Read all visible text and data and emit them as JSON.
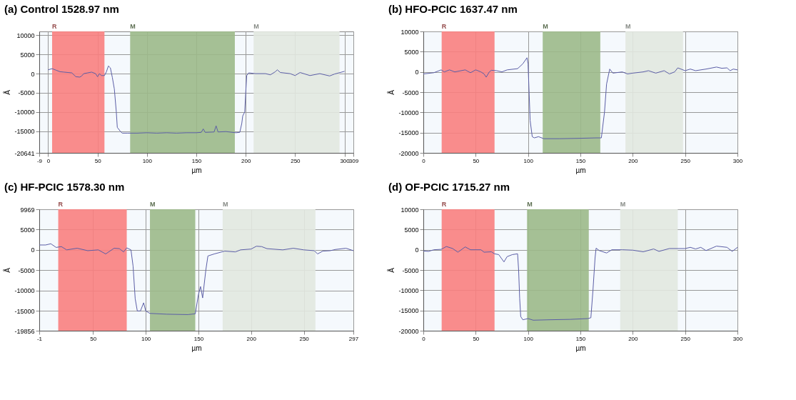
{
  "chart_data": [
    {
      "type": "line",
      "title": "(a) Control 1528.97 nm",
      "xlabel": "µm",
      "ylabel": "Å",
      "xlim": [
        -9,
        309
      ],
      "xticks": [
        -9,
        0,
        50,
        100,
        150,
        200,
        250,
        300,
        309
      ],
      "ylim": [
        -20641,
        11000
      ],
      "yticks": [
        -20641,
        -15000,
        -10000,
        -5000,
        0,
        5000,
        10000
      ],
      "grid": true,
      "bands": [
        {
          "axis": "x",
          "from": 4,
          "to": 57,
          "label": "R",
          "color": "#f98080"
        },
        {
          "axis": "x",
          "from": 83,
          "to": 189,
          "label": "M",
          "color": "#9cb98a"
        },
        {
          "axis": "x",
          "from": 208,
          "to": 295,
          "label": "M",
          "color": "#e2e8e0"
        }
      ],
      "series": [
        {
          "color": "#5b5ea6",
          "x": [
            0,
            4,
            8,
            12,
            16,
            20,
            24,
            28,
            32,
            34,
            36,
            40,
            44,
            48,
            50,
            52,
            54,
            57,
            59,
            61,
            63,
            65,
            67,
            69,
            70,
            73,
            75,
            80,
            90,
            100,
            110,
            120,
            130,
            140,
            150,
            155,
            157,
            159,
            168,
            170,
            172,
            180,
            190,
            194,
            196,
            197,
            199,
            200,
            201,
            203,
            210,
            220,
            225,
            230,
            232,
            235,
            245,
            250,
            255,
            265,
            275,
            285,
            290,
            300
          ],
          "values": [
            1000,
            1300,
            900,
            500,
            400,
            300,
            200,
            -800,
            -900,
            -600,
            0,
            200,
            400,
            0,
            -800,
            0,
            -500,
            -500,
            500,
            2000,
            1500,
            -1000,
            -4000,
            -10000,
            -14000,
            -15000,
            -15500,
            -15500,
            -15500,
            -15400,
            -15500,
            -15400,
            -15500,
            -15400,
            -15400,
            -15300,
            -14400,
            -15300,
            -15200,
            -13600,
            -15200,
            -15100,
            -15400,
            -15300,
            -13000,
            -11000,
            -10000,
            -5000,
            -500,
            200,
            0,
            0,
            -300,
            500,
            1000,
            300,
            0,
            -500,
            300,
            -500,
            0,
            -600,
            -100,
            600
          ]
        }
      ]
    },
    {
      "type": "line",
      "title": "(b) HFO-PCIC 1637.47 nm",
      "xlabel": "µm",
      "ylabel": "Å",
      "xlim": [
        0,
        300
      ],
      "xticks": [
        0,
        50,
        100,
        150,
        200,
        250,
        300
      ],
      "ylim": [
        -20000,
        10000
      ],
      "yticks": [
        -20000,
        -15000,
        -10000,
        -5000,
        0,
        5000,
        10000
      ],
      "grid": true,
      "bands": [
        {
          "axis": "x",
          "from": 17.5,
          "to": 68,
          "label": "R",
          "color": "#f98080"
        },
        {
          "axis": "x",
          "from": 114,
          "to": 169,
          "label": "M",
          "color": "#9cb98a"
        },
        {
          "axis": "x",
          "from": 193,
          "to": 248,
          "label": "M",
          "color": "#e2e8e0"
        }
      ],
      "series": [
        {
          "color": "#5b5ea6",
          "x": [
            0,
            10,
            17,
            20,
            25,
            30,
            40,
            45,
            50,
            55,
            58,
            60,
            63,
            65,
            70,
            75,
            80,
            90,
            95,
            99,
            100,
            101,
            102,
            104,
            106,
            110,
            115,
            130,
            150,
            165,
            170,
            173,
            175,
            178,
            181,
            190,
            195,
            200,
            210,
            215,
            222,
            230,
            235,
            240,
            243,
            250,
            255,
            260,
            270,
            280,
            285,
            290,
            293,
            296,
            300
          ],
          "values": [
            -500,
            -200,
            500,
            0,
            500,
            0,
            500,
            -200,
            500,
            0,
            -500,
            -1300,
            0,
            400,
            300,
            0,
            500,
            800,
            2000,
            3500,
            2000,
            -5000,
            -12000,
            -16000,
            -16300,
            -16000,
            -16500,
            -16500,
            -16400,
            -16300,
            -16300,
            -10000,
            -3000,
            700,
            -300,
            0,
            -500,
            -300,
            0,
            300,
            -300,
            300,
            -500,
            0,
            1000,
            300,
            700,
            300,
            700,
            1200,
            900,
            1000,
            300,
            700,
            500
          ]
        }
      ]
    },
    {
      "type": "line",
      "title": "(c) HF-PCIC 1578.30 nm",
      "xlabel": "µm",
      "ylabel": "Å",
      "xlim": [
        -1,
        297
      ],
      "xticks": [
        -1,
        50,
        100,
        150,
        200,
        250,
        297
      ],
      "ylim": [
        -19856,
        9969
      ],
      "yticks": [
        -19856,
        -15000,
        -10000,
        -5000,
        0,
        5000,
        9969
      ],
      "grid": true,
      "bands": [
        {
          "axis": "x",
          "from": 17,
          "to": 82,
          "label": "R",
          "color": "#f98080"
        },
        {
          "axis": "x",
          "from": 104,
          "to": 147,
          "label": "M",
          "color": "#9cb98a"
        },
        {
          "axis": "x",
          "from": 173,
          "to": 261,
          "label": "M",
          "color": "#e2e8e0"
        }
      ],
      "series": [
        {
          "color": "#5b5ea6",
          "x": [
            -1,
            5,
            10,
            15,
            20,
            25,
            35,
            45,
            55,
            62,
            70,
            75,
            79,
            82,
            86,
            88,
            90,
            92,
            95,
            98,
            100,
            104,
            120,
            140,
            147,
            150,
            152,
            154,
            157,
            159,
            165,
            175,
            185,
            190,
            200,
            205,
            210,
            215,
            230,
            240,
            250,
            260,
            263,
            268,
            275,
            280,
            290,
            297
          ],
          "values": [
            1200,
            1200,
            1500,
            600,
            800,
            0,
            400,
            -200,
            0,
            -1000,
            400,
            300,
            -500,
            500,
            0,
            -4000,
            -12000,
            -15000,
            -15000,
            -13000,
            -15000,
            -15600,
            -15800,
            -15900,
            -15700,
            -11000,
            -9000,
            -11800,
            -5000,
            -1500,
            -1000,
            -300,
            -500,
            0,
            200,
            900,
            800,
            300,
            0,
            400,
            0,
            -200,
            -1000,
            -300,
            -200,
            100,
            400,
            -200
          ]
        }
      ]
    },
    {
      "type": "line",
      "title": "(d) OF-PCIC 1715.27 nm",
      "xlabel": "µm",
      "ylabel": "Å",
      "xlim": [
        0,
        300
      ],
      "xticks": [
        0,
        50,
        100,
        150,
        200,
        250,
        300
      ],
      "ylim": [
        -20000,
        10000
      ],
      "yticks": [
        -20000,
        -15000,
        -10000,
        -5000,
        0,
        5000,
        10000
      ],
      "grid": true,
      "bands": [
        {
          "axis": "x",
          "from": 17.5,
          "to": 68,
          "label": "R",
          "color": "#f98080"
        },
        {
          "axis": "x",
          "from": 99,
          "to": 158,
          "label": "M",
          "color": "#9cb98a"
        },
        {
          "axis": "x",
          "from": 188,
          "to": 243,
          "label": "M",
          "color": "#e2e8e0"
        }
      ],
      "series": [
        {
          "color": "#5b5ea6",
          "x": [
            0,
            5,
            10,
            17,
            22,
            28,
            33,
            40,
            45,
            55,
            58,
            65,
            68,
            72,
            77,
            80,
            85,
            90,
            91,
            92,
            93,
            95,
            100,
            105,
            120,
            140,
            157,
            160,
            162,
            164,
            165,
            168,
            175,
            180,
            190,
            200,
            210,
            220,
            225,
            235,
            250,
            255,
            260,
            265,
            270,
            280,
            290,
            295,
            300
          ],
          "values": [
            -300,
            -400,
            0,
            100,
            800,
            300,
            -600,
            700,
            0,
            0,
            -600,
            -500,
            -1000,
            -1200,
            -3000,
            -1700,
            -1200,
            -1000,
            -5000,
            -12000,
            -16500,
            -17300,
            -17000,
            -17400,
            -17300,
            -17200,
            -17000,
            -16800,
            -10000,
            -2000,
            400,
            -200,
            -800,
            0,
            0,
            -100,
            -500,
            200,
            -400,
            300,
            300,
            600,
            200,
            600,
            -200,
            900,
            600,
            -400,
            600
          ]
        }
      ]
    }
  ]
}
